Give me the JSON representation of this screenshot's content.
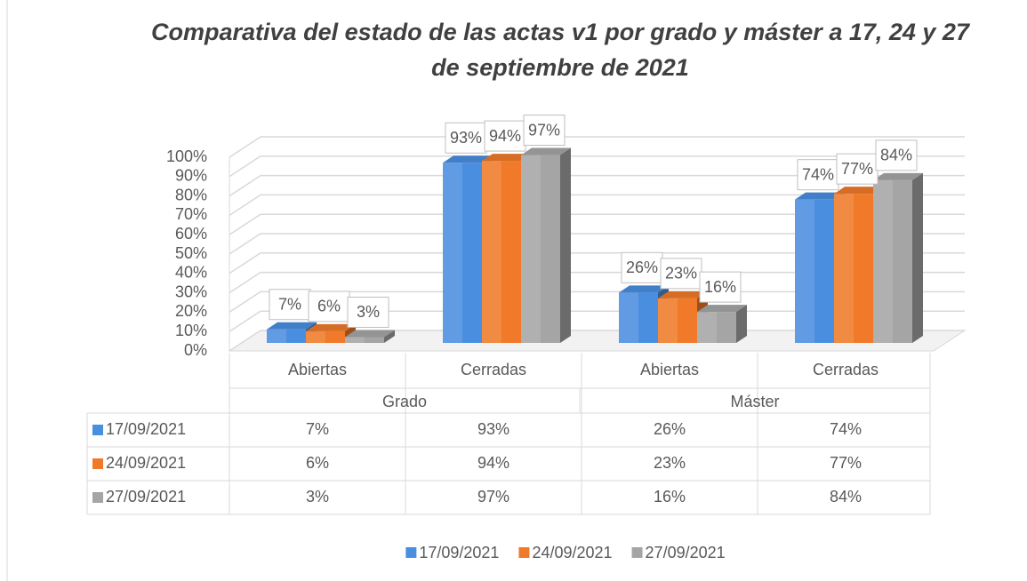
{
  "chart_data": {
    "type": "bar",
    "title": "Comparativa del estado de las actas v1 por grado y máster a 17, 24 y 27 de septiembre de 2021",
    "groups": [
      "Grado",
      "Máster"
    ],
    "categories": [
      "Abiertas",
      "Cerradas",
      "Abiertas",
      "Cerradas"
    ],
    "series": [
      {
        "name": "17/09/2021",
        "color": "#4a8ee0",
        "values": [
          7,
          93,
          26,
          74
        ],
        "value_labels": [
          "7%",
          "93%",
          "26%",
          "74%"
        ]
      },
      {
        "name": "24/09/2021",
        "color": "#f07a2a",
        "values": [
          6,
          94,
          23,
          77
        ],
        "value_labels": [
          "6%",
          "94%",
          "23%",
          "77%"
        ]
      },
      {
        "name": "27/09/2021",
        "color": "#a5a5a5",
        "values": [
          3,
          97,
          16,
          84
        ],
        "value_labels": [
          "3%",
          "97%",
          "16%",
          "84%"
        ]
      }
    ],
    "ylim": [
      0,
      100
    ],
    "yticks": [
      {
        "value": 0,
        "label": "0%"
      },
      {
        "value": 10,
        "label": "10%"
      },
      {
        "value": 20,
        "label": "20%"
      },
      {
        "value": 30,
        "label": "30%"
      },
      {
        "value": 40,
        "label": "40%"
      },
      {
        "value": 50,
        "label": "50%"
      },
      {
        "value": 60,
        "label": "60%"
      },
      {
        "value": 70,
        "label": "70%"
      },
      {
        "value": 80,
        "label": "80%"
      },
      {
        "value": 90,
        "label": "90%"
      },
      {
        "value": 100,
        "label": "100%"
      }
    ],
    "grid": true,
    "data_table": true,
    "legend": "bottom"
  }
}
